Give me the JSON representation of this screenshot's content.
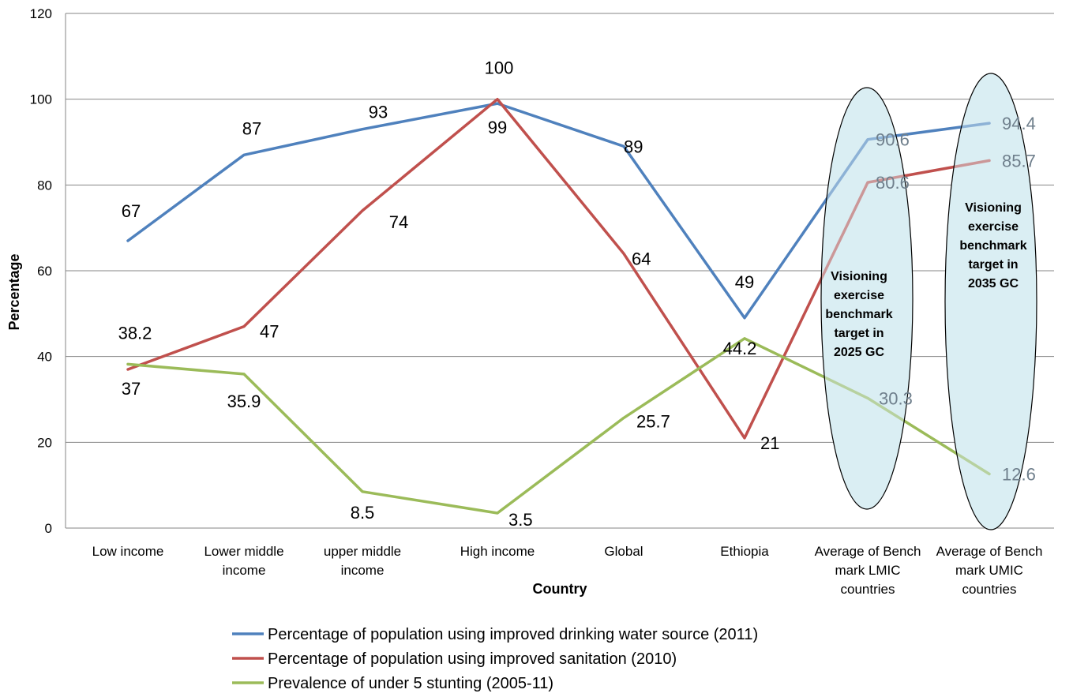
{
  "chart_data": {
    "type": "line",
    "title": "",
    "xlabel": "Country",
    "ylabel": "Percentage",
    "ylim": [
      0,
      120
    ],
    "yticks": [
      0,
      20,
      40,
      60,
      80,
      100,
      120
    ],
    "grid": true,
    "legend_position": "bottom",
    "categories": [
      [
        "Low income"
      ],
      [
        "Lower middle",
        "income"
      ],
      [
        "upper middle",
        "income"
      ],
      [
        "High  income"
      ],
      [
        "Global"
      ],
      [
        "Ethiopia"
      ],
      [
        "Average of Bench",
        "mark LMIC",
        "countries"
      ],
      [
        "Average of Bench",
        "mark UMIC",
        "countries"
      ]
    ],
    "series": [
      {
        "name": "Percentage of population using improved drinking water source (2011)",
        "color": "#4f81bd",
        "values": [
          67,
          87,
          93,
          99,
          89,
          49,
          90.6,
          94.4
        ]
      },
      {
        "name": "Percentage of population using improved sanitation (2010)",
        "color": "#c0504d",
        "values": [
          37,
          47,
          74,
          100,
          64,
          21,
          80.6,
          85.7
        ]
      },
      {
        "name": "Prevalence of under 5 stunting (2005-11)",
        "color": "#9bbb59",
        "values": [
          38.2,
          35.9,
          8.5,
          3.5,
          25.7,
          44.2,
          30.3,
          12.6
        ]
      }
    ],
    "data_labels": [
      {
        "text": "67",
        "series": 0,
        "index": 0,
        "pos": "above"
      },
      {
        "text": "87",
        "series": 0,
        "index": 1,
        "pos": "above"
      },
      {
        "text": "93",
        "series": 0,
        "index": 2,
        "pos": "above"
      },
      {
        "text": "99",
        "series": 0,
        "index": 3,
        "pos": "below"
      },
      {
        "text": "89",
        "series": 0,
        "index": 4,
        "pos": "right"
      },
      {
        "text": "49",
        "series": 0,
        "index": 5,
        "pos": "above"
      },
      {
        "text": "90.6",
        "series": 0,
        "index": 6,
        "pos": "right"
      },
      {
        "text": "94.4",
        "series": 0,
        "index": 7,
        "pos": "right"
      },
      {
        "text": "37",
        "series": 1,
        "index": 0,
        "pos": "below"
      },
      {
        "text": "47",
        "series": 1,
        "index": 1,
        "pos": "right"
      },
      {
        "text": "74",
        "series": 1,
        "index": 2,
        "pos": "below"
      },
      {
        "text": "100",
        "series": 1,
        "index": 3,
        "pos": "above"
      },
      {
        "text": "64",
        "series": 1,
        "index": 4,
        "pos": "right"
      },
      {
        "text": "21",
        "series": 1,
        "index": 5,
        "pos": "right"
      },
      {
        "text": "80.6",
        "series": 1,
        "index": 6,
        "pos": "right"
      },
      {
        "text": "85.7",
        "series": 1,
        "index": 7,
        "pos": "right"
      },
      {
        "text": "38.2",
        "series": 2,
        "index": 0,
        "pos": "above"
      },
      {
        "text": "35.9",
        "series": 2,
        "index": 1,
        "pos": "below"
      },
      {
        "text": "8.5",
        "series": 2,
        "index": 2,
        "pos": "above"
      },
      {
        "text": "3.5",
        "series": 2,
        "index": 3,
        "pos": "right"
      },
      {
        "text": "25.7",
        "series": 2,
        "index": 4,
        "pos": "right"
      },
      {
        "text": "44.2",
        "series": 2,
        "index": 5,
        "pos": "below"
      },
      {
        "text": "30.3",
        "series": 2,
        "index": 6,
        "pos": "right"
      },
      {
        "text": "12.6",
        "series": 2,
        "index": 7,
        "pos": "right"
      }
    ],
    "annotations": [
      {
        "lines": [
          "Visioning",
          "exercise",
          "benchmark",
          "target in",
          "2025 GC"
        ],
        "category_index": 6
      },
      {
        "lines": [
          "Visioning",
          "exercise",
          "benchmark",
          "target in",
          "2035 GC"
        ],
        "category_index": 7
      }
    ],
    "highlight_color": "#daeef3"
  }
}
